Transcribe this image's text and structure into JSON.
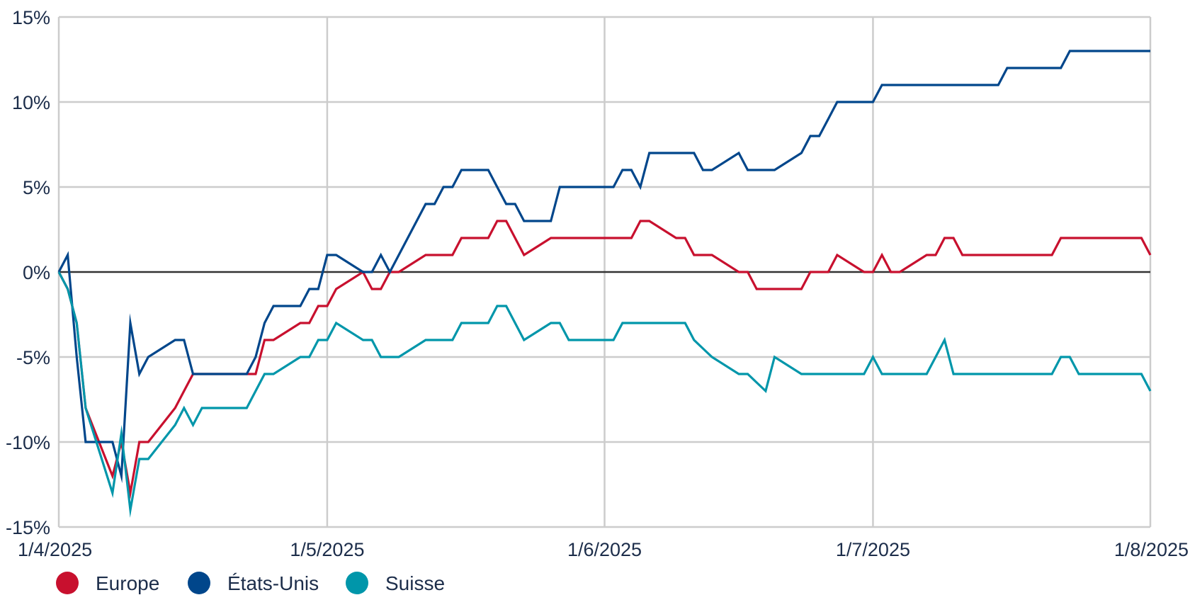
{
  "chart_data": {
    "type": "line",
    "title": "",
    "xlabel": "",
    "ylabel": "",
    "y_unit": "%",
    "ylim": [
      -15,
      15
    ],
    "y_ticks": [
      15,
      10,
      5,
      0,
      -5,
      -10,
      -15
    ],
    "y_tick_labels": [
      "15%",
      "10%",
      "5%",
      "0%",
      "-5%",
      "-10%",
      "-15%"
    ],
    "xlim": [
      "2025-04-01",
      "2025-08-01"
    ],
    "x_ticks": [
      "2025-04-01",
      "2025-05-01",
      "2025-06-01",
      "2025-07-01",
      "2025-08-01"
    ],
    "x_tick_labels": [
      "1/4/2025",
      "1/5/2025",
      "1/6/2025",
      "1/7/2025",
      "1/8/2025"
    ],
    "grid": true,
    "zero_line": true,
    "legend_position": "bottom-left",
    "series": [
      {
        "name": "Europe",
        "color": "#c8102e",
        "points": [
          [
            "2025-04-01",
            0
          ],
          [
            "2025-04-02",
            -1
          ],
          [
            "2025-04-03",
            -3
          ],
          [
            "2025-04-04",
            -8
          ],
          [
            "2025-04-07",
            -12
          ],
          [
            "2025-04-08",
            -10
          ],
          [
            "2025-04-09",
            -13
          ],
          [
            "2025-04-10",
            -10
          ],
          [
            "2025-04-11",
            -10
          ],
          [
            "2025-04-14",
            -8
          ],
          [
            "2025-04-15",
            -7
          ],
          [
            "2025-04-16",
            -6
          ],
          [
            "2025-04-17",
            -6
          ],
          [
            "2025-04-22",
            -6
          ],
          [
            "2025-04-23",
            -6
          ],
          [
            "2025-04-24",
            -4
          ],
          [
            "2025-04-25",
            -4
          ],
          [
            "2025-04-28",
            -3
          ],
          [
            "2025-04-29",
            -3
          ],
          [
            "2025-04-30",
            -2
          ],
          [
            "2025-05-01",
            -2
          ],
          [
            "2025-05-02",
            -1
          ],
          [
            "2025-05-05",
            0
          ],
          [
            "2025-05-06",
            -1
          ],
          [
            "2025-05-07",
            -1
          ],
          [
            "2025-05-08",
            0
          ],
          [
            "2025-05-09",
            0
          ],
          [
            "2025-05-12",
            1
          ],
          [
            "2025-05-13",
            1
          ],
          [
            "2025-05-14",
            1
          ],
          [
            "2025-05-15",
            1
          ],
          [
            "2025-05-16",
            2
          ],
          [
            "2025-05-19",
            2
          ],
          [
            "2025-05-20",
            3
          ],
          [
            "2025-05-21",
            3
          ],
          [
            "2025-05-22",
            2
          ],
          [
            "2025-05-23",
            1
          ],
          [
            "2025-05-26",
            2
          ],
          [
            "2025-05-27",
            2
          ],
          [
            "2025-05-28",
            2
          ],
          [
            "2025-05-29",
            2
          ],
          [
            "2025-05-30",
            2
          ],
          [
            "2025-06-02",
            2
          ],
          [
            "2025-06-03",
            2
          ],
          [
            "2025-06-04",
            2
          ],
          [
            "2025-06-05",
            3
          ],
          [
            "2025-06-06",
            3
          ],
          [
            "2025-06-09",
            2
          ],
          [
            "2025-06-10",
            2
          ],
          [
            "2025-06-11",
            1
          ],
          [
            "2025-06-12",
            1
          ],
          [
            "2025-06-13",
            1
          ],
          [
            "2025-06-16",
            0
          ],
          [
            "2025-06-17",
            0
          ],
          [
            "2025-06-18",
            -1
          ],
          [
            "2025-06-19",
            -1
          ],
          [
            "2025-06-20",
            -1
          ],
          [
            "2025-06-23",
            -1
          ],
          [
            "2025-06-24",
            0
          ],
          [
            "2025-06-25",
            0
          ],
          [
            "2025-06-26",
            0
          ],
          [
            "2025-06-27",
            1
          ],
          [
            "2025-06-30",
            0
          ],
          [
            "2025-07-01",
            0
          ],
          [
            "2025-07-02",
            1
          ],
          [
            "2025-07-03",
            0
          ],
          [
            "2025-07-04",
            0
          ],
          [
            "2025-07-07",
            1
          ],
          [
            "2025-07-08",
            1
          ],
          [
            "2025-07-09",
            2
          ],
          [
            "2025-07-10",
            2
          ],
          [
            "2025-07-11",
            1
          ],
          [
            "2025-07-14",
            1
          ],
          [
            "2025-07-15",
            1
          ],
          [
            "2025-07-16",
            1
          ],
          [
            "2025-07-17",
            1
          ],
          [
            "2025-07-18",
            1
          ],
          [
            "2025-07-21",
            1
          ],
          [
            "2025-07-22",
            2
          ],
          [
            "2025-07-23",
            2
          ],
          [
            "2025-07-24",
            2
          ],
          [
            "2025-07-25",
            2
          ],
          [
            "2025-07-28",
            2
          ],
          [
            "2025-07-29",
            2
          ],
          [
            "2025-07-30",
            2
          ],
          [
            "2025-07-31",
            2
          ],
          [
            "2025-08-01",
            1
          ]
        ]
      },
      {
        "name": "États-Unis",
        "color": "#00468b",
        "points": [
          [
            "2025-04-01",
            0
          ],
          [
            "2025-04-02",
            1
          ],
          [
            "2025-04-03",
            -5
          ],
          [
            "2025-04-04",
            -10
          ],
          [
            "2025-04-07",
            -10
          ],
          [
            "2025-04-08",
            -12
          ],
          [
            "2025-04-09",
            -3
          ],
          [
            "2025-04-10",
            -6
          ],
          [
            "2025-04-11",
            -5
          ],
          [
            "2025-04-14",
            -4
          ],
          [
            "2025-04-15",
            -4
          ],
          [
            "2025-04-16",
            -6
          ],
          [
            "2025-04-17",
            -6
          ],
          [
            "2025-04-22",
            -6
          ],
          [
            "2025-04-23",
            -5
          ],
          [
            "2025-04-24",
            -3
          ],
          [
            "2025-04-25",
            -2
          ],
          [
            "2025-04-28",
            -2
          ],
          [
            "2025-04-29",
            -1
          ],
          [
            "2025-04-30",
            -1
          ],
          [
            "2025-05-01",
            1
          ],
          [
            "2025-05-02",
            1
          ],
          [
            "2025-05-05",
            0
          ],
          [
            "2025-05-06",
            0
          ],
          [
            "2025-05-07",
            1
          ],
          [
            "2025-05-08",
            0
          ],
          [
            "2025-05-09",
            1
          ],
          [
            "2025-05-12",
            4
          ],
          [
            "2025-05-13",
            4
          ],
          [
            "2025-05-14",
            5
          ],
          [
            "2025-05-15",
            5
          ],
          [
            "2025-05-16",
            6
          ],
          [
            "2025-05-19",
            6
          ],
          [
            "2025-05-20",
            5
          ],
          [
            "2025-05-21",
            4
          ],
          [
            "2025-05-22",
            4
          ],
          [
            "2025-05-23",
            3
          ],
          [
            "2025-05-26",
            3
          ],
          [
            "2025-05-27",
            5
          ],
          [
            "2025-05-28",
            5
          ],
          [
            "2025-05-29",
            5
          ],
          [
            "2025-05-30",
            5
          ],
          [
            "2025-06-02",
            5
          ],
          [
            "2025-06-03",
            6
          ],
          [
            "2025-06-04",
            6
          ],
          [
            "2025-06-05",
            5
          ],
          [
            "2025-06-06",
            7
          ],
          [
            "2025-06-09",
            7
          ],
          [
            "2025-06-10",
            7
          ],
          [
            "2025-06-11",
            7
          ],
          [
            "2025-06-12",
            6
          ],
          [
            "2025-06-13",
            6
          ],
          [
            "2025-06-16",
            7
          ],
          [
            "2025-06-17",
            6
          ],
          [
            "2025-06-18",
            6
          ],
          [
            "2025-06-19",
            6
          ],
          [
            "2025-06-20",
            6
          ],
          [
            "2025-06-23",
            7
          ],
          [
            "2025-06-24",
            8
          ],
          [
            "2025-06-25",
            8
          ],
          [
            "2025-06-26",
            9
          ],
          [
            "2025-06-27",
            10
          ],
          [
            "2025-06-30",
            10
          ],
          [
            "2025-07-01",
            10
          ],
          [
            "2025-07-02",
            11
          ],
          [
            "2025-07-03",
            11
          ],
          [
            "2025-07-04",
            11
          ],
          [
            "2025-07-07",
            11
          ],
          [
            "2025-07-08",
            11
          ],
          [
            "2025-07-09",
            11
          ],
          [
            "2025-07-10",
            11
          ],
          [
            "2025-07-11",
            11
          ],
          [
            "2025-07-14",
            11
          ],
          [
            "2025-07-15",
            11
          ],
          [
            "2025-07-16",
            12
          ],
          [
            "2025-07-17",
            12
          ],
          [
            "2025-07-18",
            12
          ],
          [
            "2025-07-21",
            12
          ],
          [
            "2025-07-22",
            12
          ],
          [
            "2025-07-23",
            13
          ],
          [
            "2025-07-24",
            13
          ],
          [
            "2025-07-25",
            13
          ],
          [
            "2025-07-28",
            13
          ],
          [
            "2025-07-29",
            13
          ],
          [
            "2025-07-30",
            13
          ],
          [
            "2025-07-31",
            13
          ],
          [
            "2025-08-01",
            13
          ]
        ]
      },
      {
        "name": "Suisse",
        "color": "#0096aa",
        "points": [
          [
            "2025-04-01",
            0
          ],
          [
            "2025-04-02",
            -1
          ],
          [
            "2025-04-03",
            -3
          ],
          [
            "2025-04-04",
            -8
          ],
          [
            "2025-04-07",
            -13
          ],
          [
            "2025-04-08",
            -9.5
          ],
          [
            "2025-04-09",
            -14
          ],
          [
            "2025-04-10",
            -11
          ],
          [
            "2025-04-11",
            -11
          ],
          [
            "2025-04-14",
            -9
          ],
          [
            "2025-04-15",
            -8
          ],
          [
            "2025-04-16",
            -9
          ],
          [
            "2025-04-17",
            -8
          ],
          [
            "2025-04-22",
            -8
          ],
          [
            "2025-04-23",
            -7
          ],
          [
            "2025-04-24",
            -6
          ],
          [
            "2025-04-25",
            -6
          ],
          [
            "2025-04-28",
            -5
          ],
          [
            "2025-04-29",
            -5
          ],
          [
            "2025-04-30",
            -4
          ],
          [
            "2025-05-01",
            -4
          ],
          [
            "2025-05-02",
            -3
          ],
          [
            "2025-05-05",
            -4
          ],
          [
            "2025-05-06",
            -4
          ],
          [
            "2025-05-07",
            -5
          ],
          [
            "2025-05-08",
            -5
          ],
          [
            "2025-05-09",
            -5
          ],
          [
            "2025-05-12",
            -4
          ],
          [
            "2025-05-13",
            -4
          ],
          [
            "2025-05-14",
            -4
          ],
          [
            "2025-05-15",
            -4
          ],
          [
            "2025-05-16",
            -3
          ],
          [
            "2025-05-19",
            -3
          ],
          [
            "2025-05-20",
            -2
          ],
          [
            "2025-05-21",
            -2
          ],
          [
            "2025-05-22",
            -3
          ],
          [
            "2025-05-23",
            -4
          ],
          [
            "2025-05-26",
            -3
          ],
          [
            "2025-05-27",
            -3
          ],
          [
            "2025-05-28",
            -4
          ],
          [
            "2025-05-29",
            -4
          ],
          [
            "2025-05-30",
            -4
          ],
          [
            "2025-06-02",
            -4
          ],
          [
            "2025-06-03",
            -3
          ],
          [
            "2025-06-04",
            -3
          ],
          [
            "2025-06-05",
            -3
          ],
          [
            "2025-06-06",
            -3
          ],
          [
            "2025-06-09",
            -3
          ],
          [
            "2025-06-10",
            -3
          ],
          [
            "2025-06-11",
            -4
          ],
          [
            "2025-06-12",
            -4.5
          ],
          [
            "2025-06-13",
            -5
          ],
          [
            "2025-06-16",
            -6
          ],
          [
            "2025-06-17",
            -6
          ],
          [
            "2025-06-18",
            -6.5
          ],
          [
            "2025-06-19",
            -7
          ],
          [
            "2025-06-20",
            -5
          ],
          [
            "2025-06-23",
            -6
          ],
          [
            "2025-06-24",
            -6
          ],
          [
            "2025-06-25",
            -6
          ],
          [
            "2025-06-26",
            -6
          ],
          [
            "2025-06-27",
            -6
          ],
          [
            "2025-06-30",
            -6
          ],
          [
            "2025-07-01",
            -5
          ],
          [
            "2025-07-02",
            -6
          ],
          [
            "2025-07-03",
            -6
          ],
          [
            "2025-07-04",
            -6
          ],
          [
            "2025-07-07",
            -6
          ],
          [
            "2025-07-08",
            -5
          ],
          [
            "2025-07-09",
            -4
          ],
          [
            "2025-07-10",
            -6
          ],
          [
            "2025-07-11",
            -6
          ],
          [
            "2025-07-14",
            -6
          ],
          [
            "2025-07-15",
            -6
          ],
          [
            "2025-07-16",
            -6
          ],
          [
            "2025-07-17",
            -6
          ],
          [
            "2025-07-18",
            -6
          ],
          [
            "2025-07-21",
            -6
          ],
          [
            "2025-07-22",
            -5
          ],
          [
            "2025-07-23",
            -5
          ],
          [
            "2025-07-24",
            -6
          ],
          [
            "2025-07-25",
            -6
          ],
          [
            "2025-07-28",
            -6
          ],
          [
            "2025-07-29",
            -6
          ],
          [
            "2025-07-30",
            -6
          ],
          [
            "2025-07-31",
            -6
          ],
          [
            "2025-08-01",
            -7
          ]
        ]
      }
    ]
  }
}
